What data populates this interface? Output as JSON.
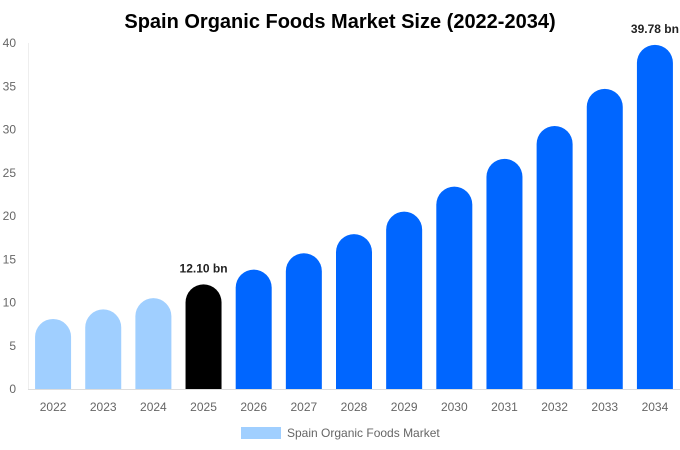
{
  "chart_data": {
    "type": "bar",
    "title": "Spain Organic Foods Market Size (2022-2034)",
    "xlabel": "",
    "ylabel": "",
    "ylim": [
      0,
      40
    ],
    "yticks": [
      0,
      5,
      10,
      15,
      20,
      25,
      30,
      35,
      40
    ],
    "grid": false,
    "legend_placement": "bottom",
    "categories": [
      "2022",
      "2023",
      "2024",
      "2025",
      "2026",
      "2027",
      "2028",
      "2029",
      "2030",
      "2031",
      "2032",
      "2033",
      "2034"
    ],
    "series": [
      {
        "name": "Spain Organic Foods Market",
        "values": [
          8.1,
          9.2,
          10.5,
          12.1,
          13.8,
          15.7,
          17.9,
          20.5,
          23.4,
          26.6,
          30.4,
          34.7,
          39.78
        ]
      }
    ],
    "bar_colors": [
      "#a0cfff",
      "#a0cfff",
      "#a0cfff",
      "#000000",
      "#0066ff",
      "#0066ff",
      "#0066ff",
      "#0066ff",
      "#0066ff",
      "#0066ff",
      "#0066ff",
      "#0066ff",
      "#0066ff"
    ],
    "legend_color": "#a0cfff",
    "data_labels": [
      {
        "category": "2025",
        "text": "12.10 bn"
      },
      {
        "category": "2034",
        "text": "39.78 bn"
      }
    ]
  }
}
